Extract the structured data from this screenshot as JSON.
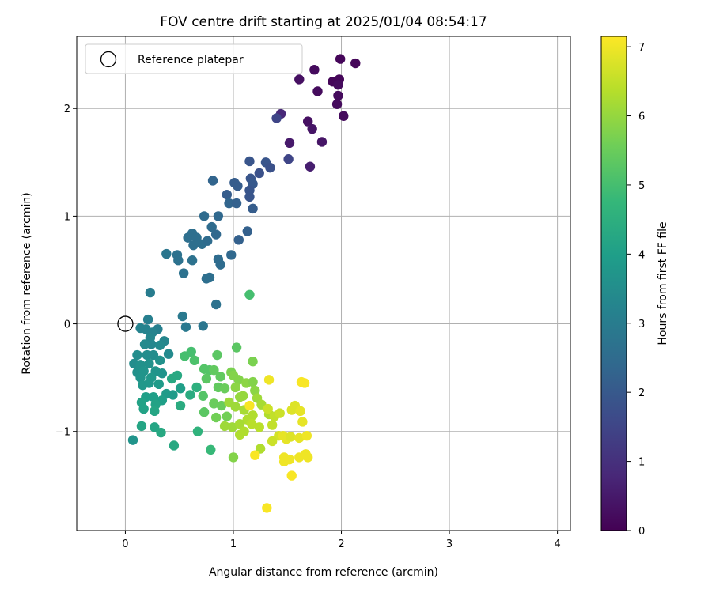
{
  "chart_data": {
    "type": "scatter",
    "title": "FOV centre drift starting at 2025/01/04 08:54:17",
    "xlabel": "Angular distance from reference (arcmin)",
    "ylabel": "Rotation from reference (arcmin)",
    "xlim": [
      -0.45,
      4.12
    ],
    "ylim": [
      -1.92,
      2.67
    ],
    "xticks": [
      0,
      1,
      2,
      3,
      4
    ],
    "xtick_labels": [
      "0",
      "1",
      "2",
      "3",
      "4"
    ],
    "yticks": [
      -1,
      0,
      1,
      2
    ],
    "ytick_labels": [
      "−1",
      "0",
      "1",
      "2"
    ],
    "grid": true,
    "legend": {
      "position": "upper-left",
      "entries": [
        "Reference platepar"
      ]
    },
    "reference_point": {
      "x": 0,
      "y": 0
    },
    "colorbar": {
      "label": "Hours from first FF file",
      "min": 0,
      "max": 7.15,
      "ticks": [
        0,
        1,
        2,
        3,
        4,
        5,
        6,
        7
      ],
      "tick_labels": [
        "0",
        "1",
        "2",
        "3",
        "4",
        "5",
        "6",
        "7"
      ],
      "colormap": "viridis",
      "colormap_stops": [
        "#440154",
        "#482878",
        "#3e4989",
        "#31688e",
        "#26828e",
        "#1f9e89",
        "#35b779",
        "#6ece58",
        "#b5de2b",
        "#fde725"
      ]
    },
    "points": [
      {
        "x": 1.99,
        "y": 2.46,
        "c": 0.1
      },
      {
        "x": 2.13,
        "y": 2.42,
        "c": 0.1
      },
      {
        "x": 1.75,
        "y": 2.36,
        "c": 0.2
      },
      {
        "x": 1.61,
        "y": 2.27,
        "c": 0.3
      },
      {
        "x": 1.92,
        "y": 2.25,
        "c": 0.1
      },
      {
        "x": 1.98,
        "y": 2.27,
        "c": 0.1
      },
      {
        "x": 1.97,
        "y": 2.22,
        "c": 0.2
      },
      {
        "x": 1.78,
        "y": 2.16,
        "c": 0.2
      },
      {
        "x": 1.97,
        "y": 2.12,
        "c": 0.2
      },
      {
        "x": 1.96,
        "y": 2.04,
        "c": 0.2
      },
      {
        "x": 2.02,
        "y": 1.93,
        "c": 0.2
      },
      {
        "x": 1.44,
        "y": 1.95,
        "c": 0.8
      },
      {
        "x": 1.4,
        "y": 1.91,
        "c": 1.5
      },
      {
        "x": 1.69,
        "y": 1.88,
        "c": 0.3
      },
      {
        "x": 1.73,
        "y": 1.81,
        "c": 0.4
      },
      {
        "x": 1.82,
        "y": 1.69,
        "c": 0.4
      },
      {
        "x": 1.52,
        "y": 1.68,
        "c": 0.5
      },
      {
        "x": 1.51,
        "y": 1.53,
        "c": 1.5
      },
      {
        "x": 1.71,
        "y": 1.46,
        "c": 0.6
      },
      {
        "x": 1.3,
        "y": 1.5,
        "c": 1.9
      },
      {
        "x": 1.34,
        "y": 1.45,
        "c": 1.8
      },
      {
        "x": 1.15,
        "y": 1.51,
        "c": 1.9
      },
      {
        "x": 1.24,
        "y": 1.4,
        "c": 1.8
      },
      {
        "x": 1.16,
        "y": 1.35,
        "c": 1.9
      },
      {
        "x": 1.18,
        "y": 1.3,
        "c": 2.0
      },
      {
        "x": 1.15,
        "y": 1.24,
        "c": 1.9
      },
      {
        "x": 1.15,
        "y": 1.18,
        "c": 1.9
      },
      {
        "x": 0.81,
        "y": 1.33,
        "c": 2.3
      },
      {
        "x": 1.01,
        "y": 1.31,
        "c": 2.1
      },
      {
        "x": 1.04,
        "y": 1.28,
        "c": 2.1
      },
      {
        "x": 0.94,
        "y": 1.2,
        "c": 2.1
      },
      {
        "x": 0.96,
        "y": 1.12,
        "c": 2.3
      },
      {
        "x": 1.03,
        "y": 1.12,
        "c": 2.2
      },
      {
        "x": 1.18,
        "y": 1.07,
        "c": 2.1
      },
      {
        "x": 0.73,
        "y": 1.0,
        "c": 2.5
      },
      {
        "x": 0.86,
        "y": 1.0,
        "c": 2.4
      },
      {
        "x": 0.8,
        "y": 0.9,
        "c": 2.5
      },
      {
        "x": 0.84,
        "y": 0.83,
        "c": 2.4
      },
      {
        "x": 0.62,
        "y": 0.84,
        "c": 2.6
      },
      {
        "x": 0.58,
        "y": 0.8,
        "c": 2.6
      },
      {
        "x": 0.66,
        "y": 0.8,
        "c": 2.6
      },
      {
        "x": 0.71,
        "y": 0.74,
        "c": 2.6
      },
      {
        "x": 0.63,
        "y": 0.73,
        "c": 2.6
      },
      {
        "x": 0.76,
        "y": 0.77,
        "c": 2.5
      },
      {
        "x": 1.05,
        "y": 0.78,
        "c": 2.2
      },
      {
        "x": 1.13,
        "y": 0.86,
        "c": 2.2
      },
      {
        "x": 0.38,
        "y": 0.65,
        "c": 2.8
      },
      {
        "x": 0.48,
        "y": 0.64,
        "c": 2.7
      },
      {
        "x": 0.49,
        "y": 0.59,
        "c": 2.7
      },
      {
        "x": 0.62,
        "y": 0.59,
        "c": 2.7
      },
      {
        "x": 0.86,
        "y": 0.6,
        "c": 2.5
      },
      {
        "x": 0.98,
        "y": 0.64,
        "c": 2.4
      },
      {
        "x": 0.88,
        "y": 0.55,
        "c": 2.5
      },
      {
        "x": 0.54,
        "y": 0.47,
        "c": 2.7
      },
      {
        "x": 0.78,
        "y": 0.43,
        "c": 2.6
      },
      {
        "x": 0.75,
        "y": 0.42,
        "c": 2.6
      },
      {
        "x": 0.23,
        "y": 0.29,
        "c": 3.0
      },
      {
        "x": 0.84,
        "y": 0.18,
        "c": 2.7
      },
      {
        "x": 0.53,
        "y": 0.07,
        "c": 2.9
      },
      {
        "x": 0.56,
        "y": -0.03,
        "c": 2.9
      },
      {
        "x": 0.72,
        "y": -0.02,
        "c": 2.8
      },
      {
        "x": 0.21,
        "y": 0.04,
        "c": 3.1
      },
      {
        "x": 0.14,
        "y": -0.04,
        "c": 3.2
      },
      {
        "x": 0.19,
        "y": -0.05,
        "c": 3.2
      },
      {
        "x": 0.3,
        "y": -0.05,
        "c": 3.1
      },
      {
        "x": 0.25,
        "y": -0.08,
        "c": 3.2
      },
      {
        "x": 0.23,
        "y": -0.13,
        "c": 3.3
      },
      {
        "x": 0.24,
        "y": -0.19,
        "c": 3.3
      },
      {
        "x": 0.36,
        "y": -0.16,
        "c": 3.3
      },
      {
        "x": 0.32,
        "y": -0.2,
        "c": 3.4
      },
      {
        "x": 0.18,
        "y": -0.19,
        "c": 3.4
      },
      {
        "x": 0.4,
        "y": -0.28,
        "c": 3.4
      },
      {
        "x": 0.11,
        "y": -0.29,
        "c": 3.5
      },
      {
        "x": 0.2,
        "y": -0.29,
        "c": 3.5
      },
      {
        "x": 0.26,
        "y": -0.29,
        "c": 3.5
      },
      {
        "x": 0.08,
        "y": -0.37,
        "c": 3.5
      },
      {
        "x": 0.14,
        "y": -0.38,
        "c": 3.6
      },
      {
        "x": 0.22,
        "y": -0.37,
        "c": 3.6
      },
      {
        "x": 0.32,
        "y": -0.34,
        "c": 3.6
      },
      {
        "x": 0.11,
        "y": -0.45,
        "c": 3.6
      },
      {
        "x": 0.17,
        "y": -0.44,
        "c": 3.7
      },
      {
        "x": 0.28,
        "y": -0.44,
        "c": 3.7
      },
      {
        "x": 0.34,
        "y": -0.46,
        "c": 3.7
      },
      {
        "x": 0.14,
        "y": -0.5,
        "c": 3.7
      },
      {
        "x": 0.24,
        "y": -0.5,
        "c": 3.8
      },
      {
        "x": 0.16,
        "y": -0.57,
        "c": 3.8
      },
      {
        "x": 0.22,
        "y": -0.55,
        "c": 3.8
      },
      {
        "x": 0.31,
        "y": -0.56,
        "c": 3.9
      },
      {
        "x": 0.38,
        "y": -0.65,
        "c": 3.9
      },
      {
        "x": 0.44,
        "y": -0.66,
        "c": 3.9
      },
      {
        "x": 0.51,
        "y": -0.6,
        "c": 4.0
      },
      {
        "x": 0.19,
        "y": -0.68,
        "c": 4.0
      },
      {
        "x": 0.26,
        "y": -0.68,
        "c": 4.0
      },
      {
        "x": 0.34,
        "y": -0.71,
        "c": 4.0
      },
      {
        "x": 0.15,
        "y": -0.73,
        "c": 4.1
      },
      {
        "x": 0.28,
        "y": -0.75,
        "c": 4.1
      },
      {
        "x": 0.17,
        "y": -0.79,
        "c": 4.1
      },
      {
        "x": 0.27,
        "y": -0.81,
        "c": 4.2
      },
      {
        "x": 0.43,
        "y": -0.51,
        "c": 4.3
      },
      {
        "x": 0.48,
        "y": -0.48,
        "c": 4.3
      },
      {
        "x": 0.6,
        "y": -0.66,
        "c": 4.4
      },
      {
        "x": 0.51,
        "y": -0.76,
        "c": 4.4
      },
      {
        "x": 0.66,
        "y": -0.59,
        "c": 4.5
      },
      {
        "x": 0.15,
        "y": -0.95,
        "c": 4.2
      },
      {
        "x": 0.27,
        "y": -0.96,
        "c": 4.2
      },
      {
        "x": 0.33,
        "y": -1.01,
        "c": 4.3
      },
      {
        "x": 0.07,
        "y": -1.08,
        "c": 3.7
      },
      {
        "x": 0.45,
        "y": -1.13,
        "c": 4.3
      },
      {
        "x": 0.67,
        "y": -1.0,
        "c": 4.6
      },
      {
        "x": 0.79,
        "y": -1.17,
        "c": 4.8
      },
      {
        "x": 0.61,
        "y": -0.26,
        "c": 5.0
      },
      {
        "x": 0.55,
        "y": -0.3,
        "c": 5.0
      },
      {
        "x": 0.64,
        "y": -0.34,
        "c": 5.1
      },
      {
        "x": 0.73,
        "y": -0.42,
        "c": 5.2
      },
      {
        "x": 0.78,
        "y": -0.43,
        "c": 5.2
      },
      {
        "x": 0.75,
        "y": -0.51,
        "c": 5.3
      },
      {
        "x": 0.72,
        "y": -0.67,
        "c": 5.2
      },
      {
        "x": 0.73,
        "y": -0.82,
        "c": 5.3
      },
      {
        "x": 0.85,
        "y": -0.29,
        "c": 5.3
      },
      {
        "x": 0.82,
        "y": -0.43,
        "c": 5.4
      },
      {
        "x": 0.88,
        "y": -0.49,
        "c": 5.4
      },
      {
        "x": 0.86,
        "y": -0.59,
        "c": 5.4
      },
      {
        "x": 0.92,
        "y": -0.6,
        "c": 5.5
      },
      {
        "x": 0.82,
        "y": -0.74,
        "c": 5.5
      },
      {
        "x": 0.89,
        "y": -0.76,
        "c": 5.5
      },
      {
        "x": 0.84,
        "y": -0.87,
        "c": 5.6
      },
      {
        "x": 0.94,
        "y": -0.86,
        "c": 5.6
      },
      {
        "x": 1.03,
        "y": -0.22,
        "c": 5.3
      },
      {
        "x": 1.15,
        "y": 0.27,
        "c": 5.0
      },
      {
        "x": 1.18,
        "y": -0.35,
        "c": 5.7
      },
      {
        "x": 0.98,
        "y": -0.45,
        "c": 5.7
      },
      {
        "x": 1.0,
        "y": -0.48,
        "c": 5.8
      },
      {
        "x": 1.05,
        "y": -0.52,
        "c": 5.8
      },
      {
        "x": 1.12,
        "y": -0.55,
        "c": 5.9
      },
      {
        "x": 1.18,
        "y": -0.54,
        "c": 5.8
      },
      {
        "x": 1.2,
        "y": -0.62,
        "c": 5.9
      },
      {
        "x": 1.02,
        "y": -0.59,
        "c": 5.9
      },
      {
        "x": 1.09,
        "y": -0.67,
        "c": 6.0
      },
      {
        "x": 1.06,
        "y": -0.68,
        "c": 6.0
      },
      {
        "x": 0.96,
        "y": -0.73,
        "c": 6.1
      },
      {
        "x": 1.02,
        "y": -0.77,
        "c": 6.1
      },
      {
        "x": 1.1,
        "y": -0.8,
        "c": 6.2
      },
      {
        "x": 1.22,
        "y": -0.69,
        "c": 6.1
      },
      {
        "x": 1.26,
        "y": -0.75,
        "c": 6.2
      },
      {
        "x": 1.33,
        "y": -0.84,
        "c": 6.3
      },
      {
        "x": 1.18,
        "y": -0.85,
        "c": 6.3
      },
      {
        "x": 1.13,
        "y": -0.89,
        "c": 6.3
      },
      {
        "x": 0.92,
        "y": -0.95,
        "c": 6.1
      },
      {
        "x": 0.99,
        "y": -0.96,
        "c": 6.1
      },
      {
        "x": 1.06,
        "y": -0.93,
        "c": 6.2
      },
      {
        "x": 1.17,
        "y": -0.93,
        "c": 6.4
      },
      {
        "x": 1.24,
        "y": -0.96,
        "c": 6.4
      },
      {
        "x": 1.06,
        "y": -1.03,
        "c": 6.3
      },
      {
        "x": 1.1,
        "y": -1.0,
        "c": 6.3
      },
      {
        "x": 1.0,
        "y": -1.24,
        "c": 5.8
      },
      {
        "x": 1.25,
        "y": -1.16,
        "c": 6.3
      },
      {
        "x": 1.32,
        "y": -0.79,
        "c": 6.6
      },
      {
        "x": 1.38,
        "y": -0.86,
        "c": 6.5
      },
      {
        "x": 1.36,
        "y": -0.94,
        "c": 6.5
      },
      {
        "x": 1.43,
        "y": -0.83,
        "c": 6.6
      },
      {
        "x": 1.42,
        "y": -1.04,
        "c": 6.7
      },
      {
        "x": 1.36,
        "y": -1.09,
        "c": 6.6
      },
      {
        "x": 1.54,
        "y": -0.8,
        "c": 6.8
      },
      {
        "x": 1.57,
        "y": -0.76,
        "c": 6.8
      },
      {
        "x": 1.62,
        "y": -0.81,
        "c": 6.9
      },
      {
        "x": 1.64,
        "y": -0.91,
        "c": 6.9
      },
      {
        "x": 1.46,
        "y": -1.04,
        "c": 6.9
      },
      {
        "x": 1.49,
        "y": -1.07,
        "c": 6.9
      },
      {
        "x": 1.53,
        "y": -1.05,
        "c": 6.8
      },
      {
        "x": 1.61,
        "y": -1.06,
        "c": 6.9
      },
      {
        "x": 1.68,
        "y": -1.04,
        "c": 7.0
      },
      {
        "x": 1.47,
        "y": -1.24,
        "c": 7.0
      },
      {
        "x": 1.52,
        "y": -1.26,
        "c": 7.0
      },
      {
        "x": 1.61,
        "y": -1.24,
        "c": 7.0
      },
      {
        "x": 1.67,
        "y": -1.21,
        "c": 7.0
      },
      {
        "x": 1.69,
        "y": -1.24,
        "c": 7.0
      },
      {
        "x": 1.47,
        "y": -1.28,
        "c": 7.0
      },
      {
        "x": 1.54,
        "y": -1.41,
        "c": 7.1
      },
      {
        "x": 1.63,
        "y": -0.54,
        "c": 7.1
      },
      {
        "x": 1.66,
        "y": -0.55,
        "c": 7.1
      },
      {
        "x": 1.33,
        "y": -0.52,
        "c": 7.0
      },
      {
        "x": 1.15,
        "y": -0.76,
        "c": 7.1
      },
      {
        "x": 1.2,
        "y": -1.22,
        "c": 7.1
      },
      {
        "x": 1.31,
        "y": -1.71,
        "c": 7.1
      }
    ]
  }
}
